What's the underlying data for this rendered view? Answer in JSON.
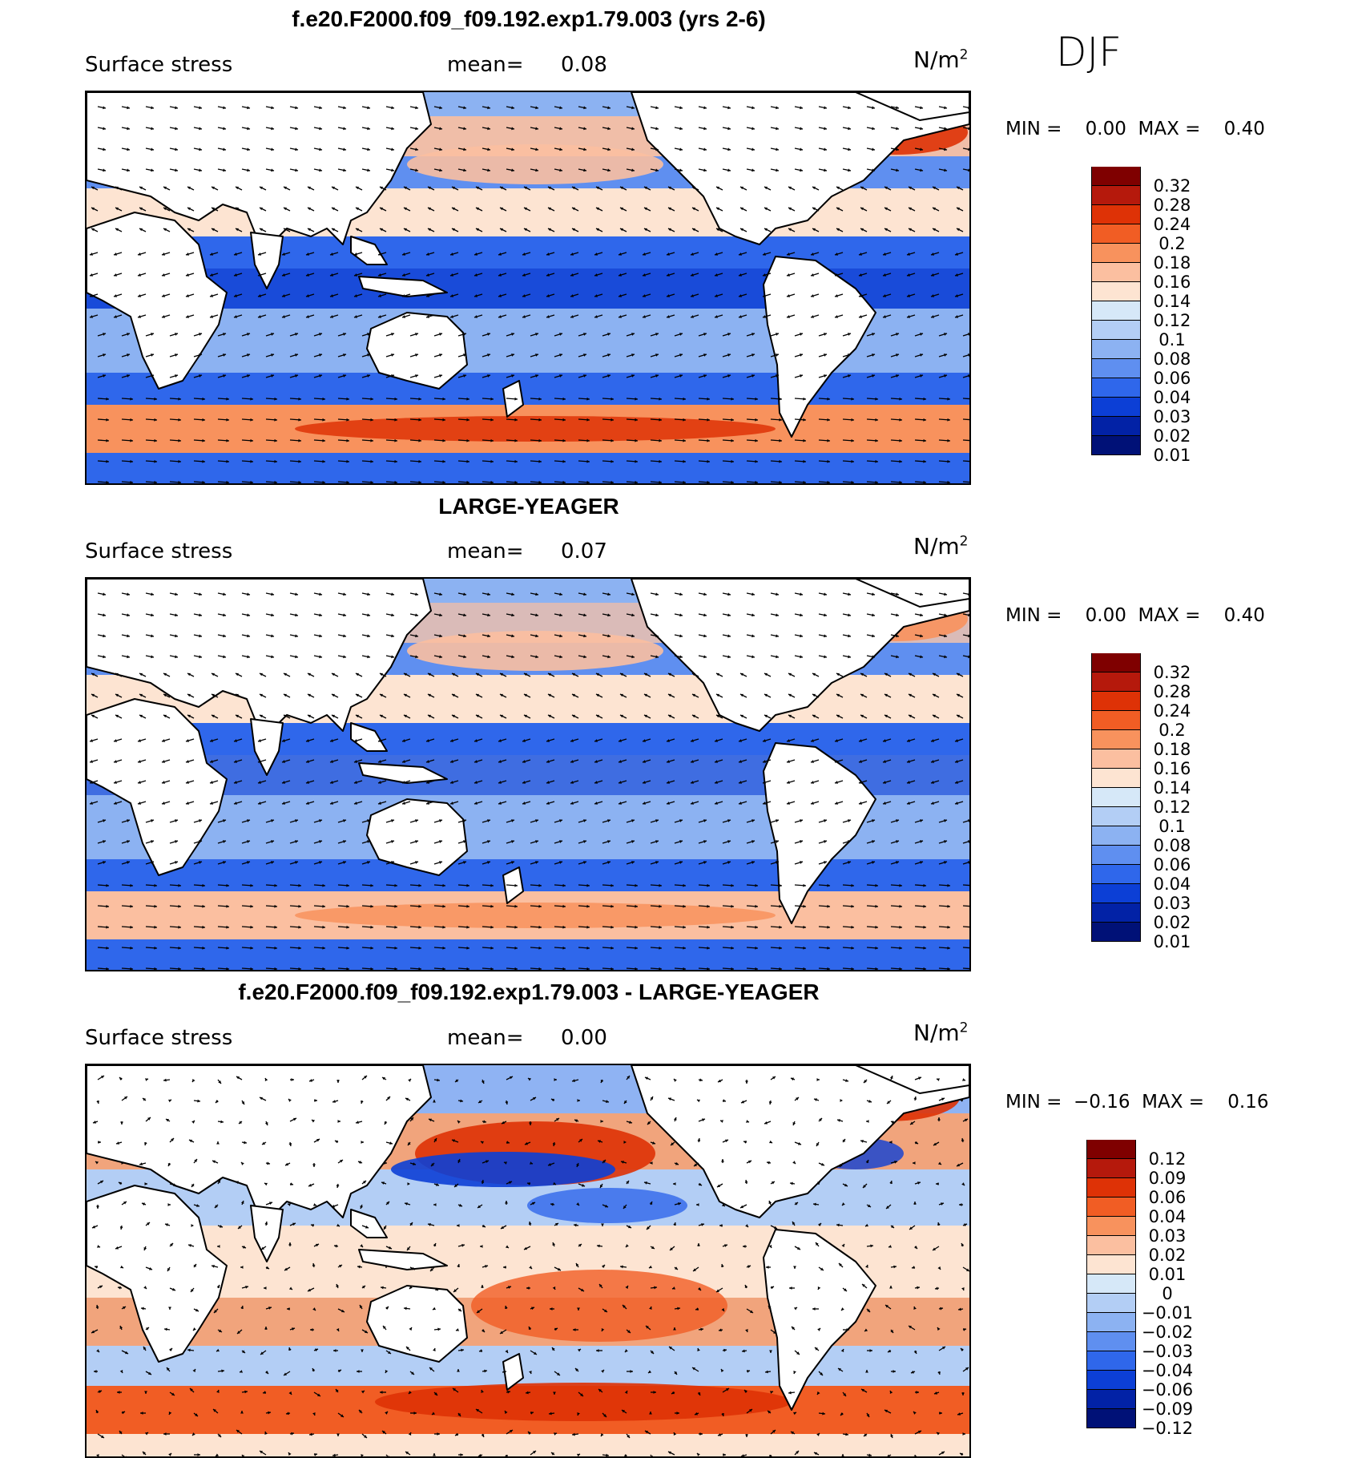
{
  "season": "DJF",
  "units_base": "N/m",
  "units_exp": "2",
  "panels": [
    {
      "title": "f.e20.F2000.f09_f09.192.exp1.79.003 (yrs 2-6)",
      "variable": "Surface stress",
      "mean_label": "mean=",
      "mean_value": "0.08",
      "minmax": "MIN =    0.00  MAX =    0.40",
      "colorbar": {
        "colors": [
          "#7f0000",
          "#b5190c",
          "#de3206",
          "#f15d24",
          "#f8925d",
          "#fbbfa0",
          "#fde4d2",
          "#d6e8f8",
          "#b3cef5",
          "#8cb2f2",
          "#5f8ff0",
          "#2f67eb",
          "#0c3fd6",
          "#0222a6",
          "#001177"
        ],
        "ticks": [
          "0.32",
          "0.28",
          "0.24",
          "0.2",
          "0.18",
          "0.16",
          "0.14",
          "0.12",
          "0.1",
          "0.08",
          "0.06",
          "0.04",
          "0.03",
          "0.02",
          "0.01"
        ]
      }
    },
    {
      "title": "LARGE-YEAGER",
      "variable": "Surface stress",
      "mean_label": "mean=",
      "mean_value": "0.07",
      "minmax": "MIN =    0.00  MAX =    0.40",
      "colorbar": {
        "colors": [
          "#7f0000",
          "#b5190c",
          "#de3206",
          "#f15d24",
          "#f8925d",
          "#fbbfa0",
          "#fde4d2",
          "#d6e8f8",
          "#b3cef5",
          "#8cb2f2",
          "#5f8ff0",
          "#2f67eb",
          "#0c3fd6",
          "#0222a6",
          "#001177"
        ],
        "ticks": [
          "0.32",
          "0.28",
          "0.24",
          "0.2",
          "0.18",
          "0.16",
          "0.14",
          "0.12",
          "0.1",
          "0.08",
          "0.06",
          "0.04",
          "0.03",
          "0.02",
          "0.01"
        ]
      }
    },
    {
      "title": "f.e20.F2000.f09_f09.192.exp1.79.003 - LARGE-YEAGER",
      "variable": "Surface stress",
      "mean_label": "mean=",
      "mean_value": "0.00",
      "minmax": "MIN =  −0.16  MAX =    0.16",
      "colorbar": {
        "colors": [
          "#7f0000",
          "#b5190c",
          "#de3206",
          "#f15d24",
          "#f8925d",
          "#fbbfa0",
          "#fde4d2",
          "#d6e8f8",
          "#b3cef5",
          "#8cb2f2",
          "#5f8ff0",
          "#2f67eb",
          "#0c3fd6",
          "#0222a6",
          "#001177"
        ],
        "ticks": [
          "0.12",
          "0.09",
          "0.06",
          "0.04",
          "0.03",
          "0.02",
          "0.01",
          "0",
          "−0.01",
          "−0.02",
          "−0.03",
          "−0.04",
          "−0.06",
          "−0.09",
          "−0.12"
        ]
      }
    }
  ]
}
